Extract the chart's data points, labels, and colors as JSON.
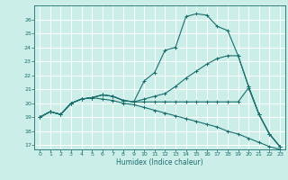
{
  "xlabel": "Humidex (Indice chaleur)",
  "xlim": [
    -0.5,
    23.5
  ],
  "ylim": [
    16.7,
    27.0
  ],
  "yticks": [
    17,
    18,
    19,
    20,
    21,
    22,
    23,
    24,
    25,
    26
  ],
  "xticks": [
    0,
    1,
    2,
    3,
    4,
    5,
    6,
    7,
    8,
    9,
    10,
    11,
    12,
    13,
    14,
    15,
    16,
    17,
    18,
    19,
    20,
    21,
    22,
    23
  ],
  "bg_color": "#cceee8",
  "grid_color": "#ffffff",
  "line_color": "#1a6e6e",
  "lines": [
    {
      "x": [
        0,
        1,
        2,
        3,
        4,
        5,
        6,
        7,
        8,
        9,
        10,
        11,
        12,
        13,
        14,
        15,
        16,
        17,
        18,
        19,
        20,
        21,
        22,
        23
      ],
      "y": [
        19.0,
        19.4,
        19.2,
        20.0,
        20.3,
        20.4,
        20.6,
        20.5,
        20.2,
        20.1,
        21.6,
        22.2,
        23.8,
        24.0,
        26.2,
        26.4,
        26.3,
        25.5,
        25.2,
        23.4,
        21.2,
        19.2,
        17.8,
        16.9
      ]
    },
    {
      "x": [
        0,
        1,
        2,
        3,
        4,
        5,
        6,
        7,
        8,
        9,
        10,
        11,
        12,
        13,
        14,
        15,
        16,
        17,
        18,
        19,
        20,
        21,
        22,
        23
      ],
      "y": [
        19.0,
        19.4,
        19.2,
        20.0,
        20.3,
        20.4,
        20.6,
        20.5,
        20.2,
        20.1,
        20.3,
        20.5,
        20.7,
        21.2,
        21.8,
        22.3,
        22.8,
        23.2,
        23.4,
        23.4,
        21.2,
        19.2,
        17.8,
        16.9
      ]
    },
    {
      "x": [
        0,
        1,
        2,
        3,
        4,
        5,
        6,
        7,
        8,
        9,
        10,
        11,
        12,
        13,
        14,
        15,
        16,
        17,
        18,
        19,
        20,
        21,
        22,
        23
      ],
      "y": [
        19.0,
        19.4,
        19.2,
        20.0,
        20.3,
        20.4,
        20.6,
        20.5,
        20.2,
        20.1,
        20.1,
        20.1,
        20.1,
        20.1,
        20.1,
        20.1,
        20.1,
        20.1,
        20.1,
        20.1,
        21.1,
        19.2,
        17.8,
        16.9
      ]
    },
    {
      "x": [
        0,
        1,
        2,
        3,
        4,
        5,
        6,
        7,
        8,
        9,
        10,
        11,
        12,
        13,
        14,
        15,
        16,
        17,
        18,
        19,
        20,
        21,
        22,
        23
      ],
      "y": [
        19.0,
        19.4,
        19.2,
        20.0,
        20.3,
        20.4,
        20.3,
        20.2,
        20.0,
        19.9,
        19.7,
        19.5,
        19.3,
        19.1,
        18.9,
        18.7,
        18.5,
        18.3,
        18.0,
        17.8,
        17.5,
        17.2,
        16.9,
        16.7
      ]
    }
  ]
}
